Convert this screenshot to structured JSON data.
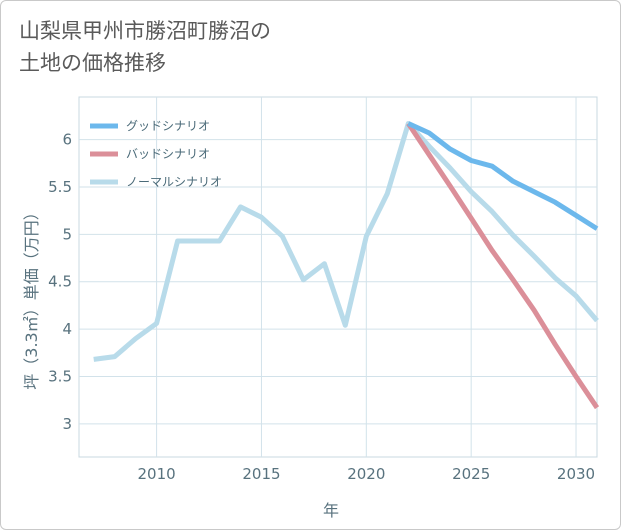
{
  "title": {
    "line1": "山梨県甲州市勝沼町勝沼の",
    "line2": "土地の価格推移"
  },
  "chart_data": {
    "type": "line",
    "title": "山梨県甲州市勝沼町勝沼の土地の価格推移",
    "xlabel": "年",
    "ylabel": "坪（3.3㎡）単価（万円）",
    "xlim": [
      2006.3,
      2031
    ],
    "ylim": [
      2.65,
      6.45
    ],
    "xticks": [
      2010,
      2015,
      2020,
      2025,
      2030
    ],
    "yticks": [
      3,
      3.5,
      4,
      4.5,
      5,
      5.5,
      6
    ],
    "xtick_labels": [
      "2010",
      "2015",
      "2020",
      "2025",
      "2030"
    ],
    "ytick_labels": [
      "3",
      "3.5",
      "4",
      "4.5",
      "5",
      "5.5",
      "6"
    ],
    "grid": true,
    "legend_position": "top-left",
    "series": [
      {
        "name": "グッドシナリオ",
        "color": "#6cb8ec",
        "x": [
          2022,
          2023,
          2024,
          2025,
          2026,
          2027,
          2028,
          2029,
          2030,
          2031
        ],
        "values": [
          6.17,
          6.07,
          5.9,
          5.78,
          5.72,
          5.56,
          5.45,
          5.34,
          5.2,
          5.06
        ]
      },
      {
        "name": "バッドシナリオ",
        "color": "#db8f99",
        "x": [
          2022,
          2023,
          2024,
          2025,
          2026,
          2027,
          2028,
          2029,
          2030,
          2031
        ],
        "values": [
          6.17,
          5.84,
          5.51,
          5.17,
          4.83,
          4.52,
          4.2,
          3.84,
          3.5,
          3.17
        ]
      },
      {
        "name": "ノーマルシナリオ",
        "color": "#b8dbea",
        "x": [
          2007,
          2008,
          2009,
          2010,
          2011,
          2012,
          2013,
          2014,
          2015,
          2016,
          2017,
          2018,
          2019,
          2020,
          2021,
          2022,
          2023,
          2024,
          2025,
          2026,
          2027,
          2028,
          2029,
          2030,
          2031
        ],
        "values": [
          3.68,
          3.71,
          3.9,
          4.06,
          4.93,
          4.93,
          4.93,
          5.29,
          5.18,
          4.98,
          4.52,
          4.69,
          4.04,
          4.98,
          5.43,
          6.17,
          5.93,
          5.7,
          5.45,
          5.24,
          4.99,
          4.77,
          4.54,
          4.35,
          4.09
        ]
      }
    ]
  }
}
